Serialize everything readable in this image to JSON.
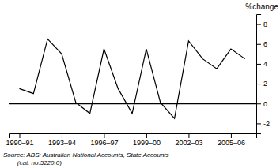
{
  "chart_data": {
    "type": "line",
    "x": [
      1990,
      1991,
      1992,
      1993,
      1994,
      1995,
      1996,
      1997,
      1998,
      1999,
      2000,
      2001,
      2002,
      2003,
      2004,
      2005,
      2006
    ],
    "values": [
      1.5,
      1.0,
      6.5,
      5.0,
      0.1,
      -1.0,
      5.5,
      1.5,
      -1.0,
      5.5,
      0.1,
      -1.5,
      6.3,
      4.5,
      3.5,
      5.5,
      4.5
    ],
    "color": "#000000",
    "hline": 0,
    "xlim": [
      1989.3,
      2006.8
    ],
    "xticks": [
      {
        "value": 1990,
        "label": "1990–91"
      },
      {
        "value": 1993,
        "label": "1993–94"
      },
      {
        "value": 1996,
        "label": "1996–97"
      },
      {
        "value": 1999,
        "label": "1999–00"
      },
      {
        "value": 2002,
        "label": "2002–03"
      },
      {
        "value": 2005,
        "label": "2005–06"
      }
    ],
    "ylim": [
      -3.0,
      9.0
    ],
    "yticks": [
      -2,
      0,
      2,
      4,
      6,
      8
    ],
    "ylabel": "%change",
    "annotations": [
      "Source: ABS: Australian National Accounts, State Accounts",
      "        (cat. no.5220.0)"
    ]
  }
}
